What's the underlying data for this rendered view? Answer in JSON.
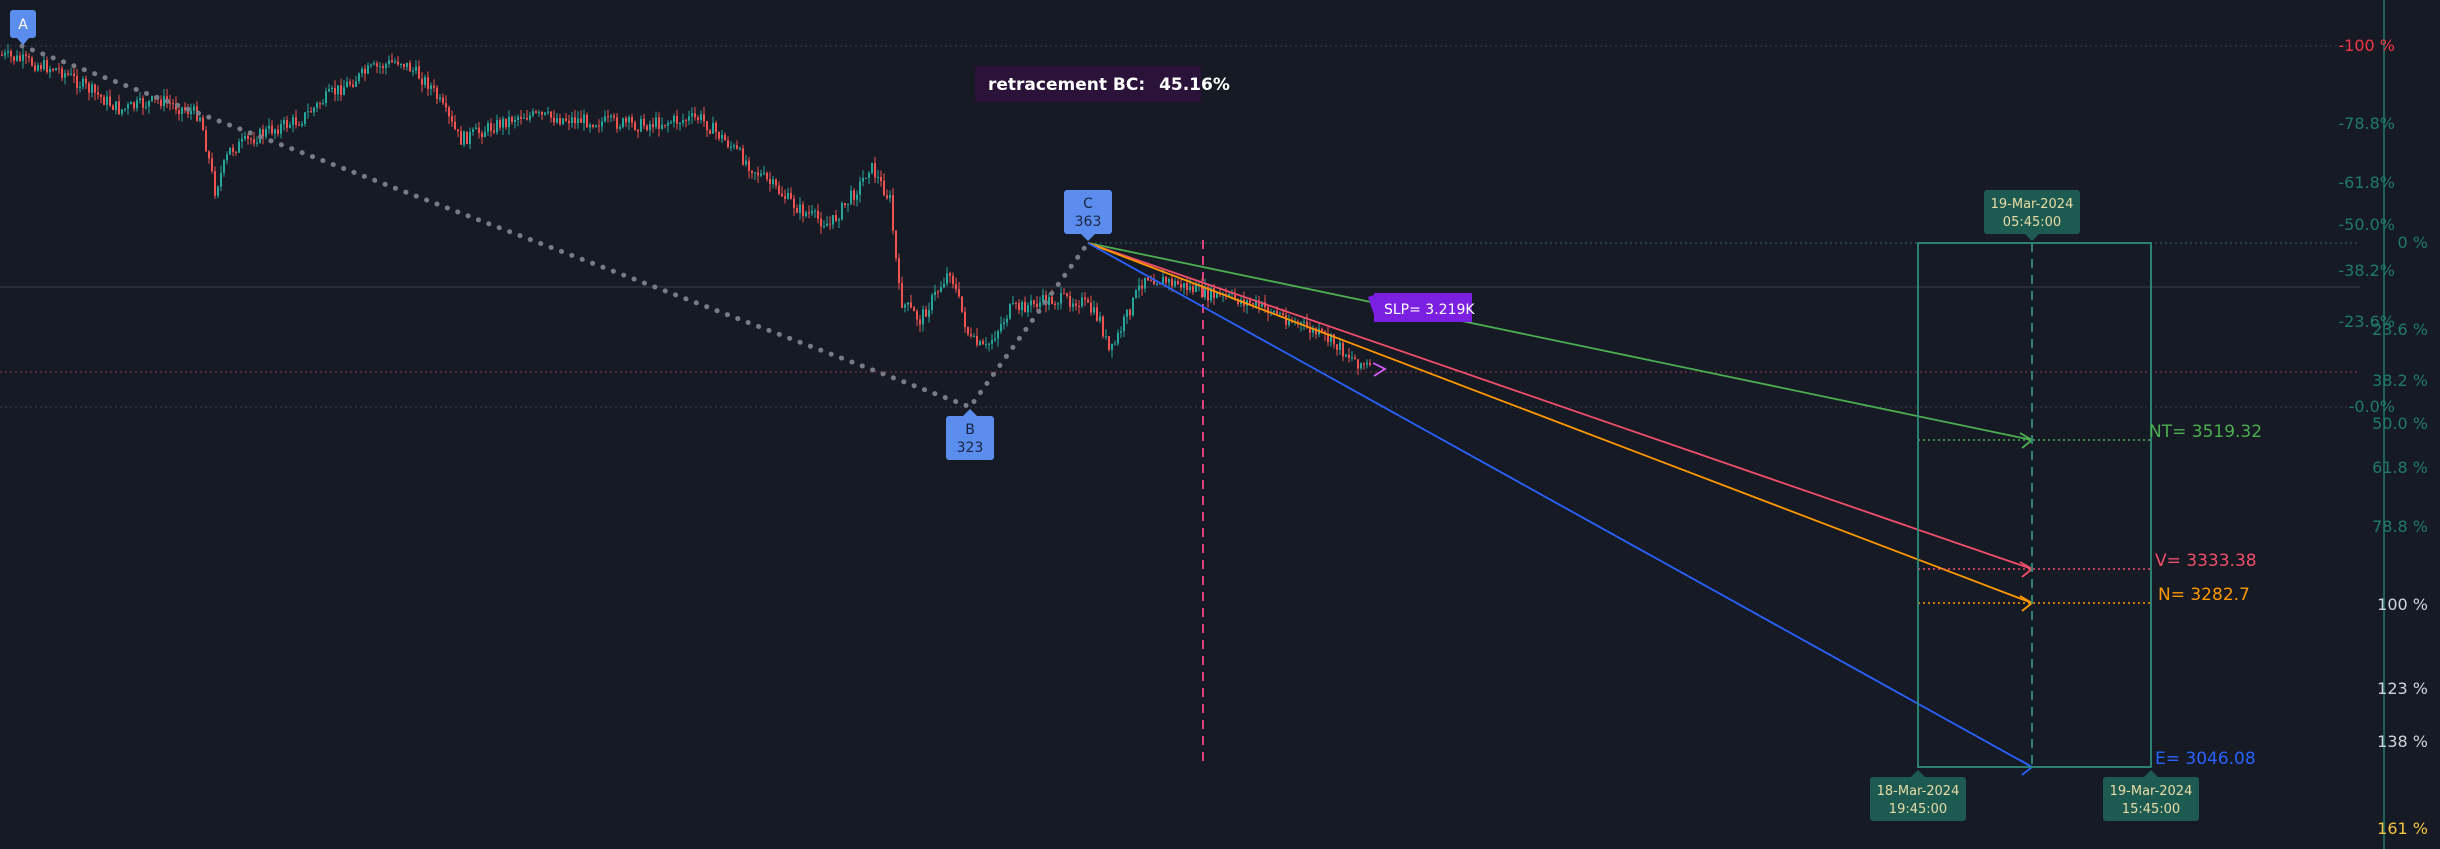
{
  "colors": {
    "background": "#161a25",
    "candle_up": "#26a69a",
    "candle_down": "#ef5350",
    "pattern_dots": "#787b86",
    "marker_blue": "#5b8def",
    "retracement_bg": "#2a1238",
    "slp_bg": "#7b1fe0",
    "box_teal": "#2e8c7a",
    "date_tag_bg": "#1c5a52",
    "date_tag_text": "#e8dca4",
    "nt_green": "#4caf50",
    "v_red": "#f04e6a",
    "n_orange": "#ff9800",
    "e_blue": "#2962ff",
    "axis_red": "#f23645",
    "axis_teal": "#1f7a6a",
    "axis_white": "#d1d4dc",
    "axis_yellow": "#f6c343"
  },
  "points": {
    "A": {
      "label": "A"
    },
    "B": {
      "label": "B",
      "value": "323"
    },
    "C": {
      "label": "C",
      "value": "363"
    }
  },
  "retracement": {
    "label": "retracement BC:",
    "value": "45.16%"
  },
  "slp": {
    "label": "SLP= 3.219K"
  },
  "targets": {
    "nt": "NT= 3519.32",
    "v": "V= 3333.38",
    "n": "N= 3282.7",
    "e": "E= 3046.08"
  },
  "dates": {
    "top": {
      "date": "19-Mar-2024",
      "time": "05:45:00"
    },
    "bottom_left": {
      "date": "18-Mar-2024",
      "time": "19:45:00"
    },
    "bottom_right": {
      "date": "19-Mar-2024",
      "time": "15:45:00"
    }
  },
  "axis_retracement": [
    "-100 %",
    "-78.8%",
    "-61.8%",
    "-50.0%",
    "-38.2%",
    "-23.6%",
    "-0.0%"
  ],
  "axis_extension": [
    "0 %",
    "23.6 %",
    "38.2 %",
    "50.0 %",
    "61.8 %",
    "78.8 %",
    "100 %",
    "123 %",
    "138 %",
    "161 %"
  ]
}
